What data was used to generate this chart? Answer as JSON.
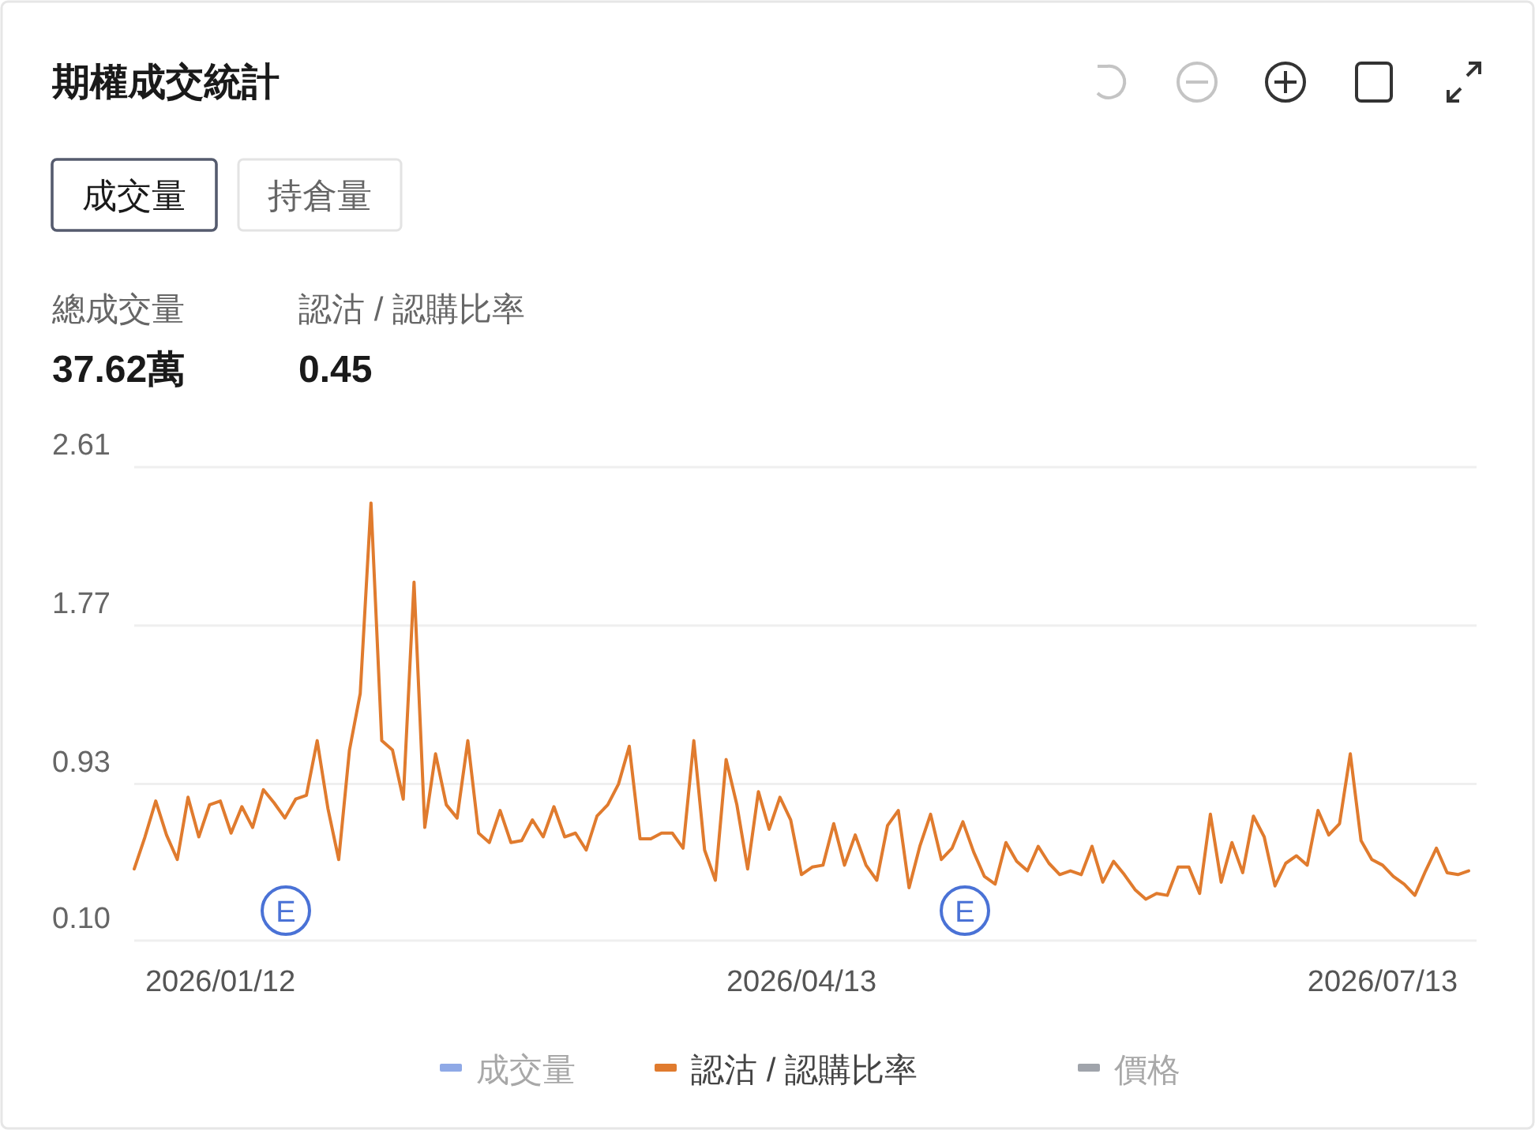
{
  "chart_data": {
    "type": "line",
    "title": "期權成交統計",
    "annotations": [
      "成交量",
      "持倉量",
      "總成交量",
      "37.62萬",
      "認沽 / 認購比率",
      "0.45",
      "E",
      "E"
    ],
    "categories": [
      null,
      null,
      null,
      null,
      null,
      null,
      null,
      null,
      "2026/01/12",
      null,
      null,
      null,
      null,
      null,
      null,
      null,
      null,
      null,
      null,
      null,
      null,
      null,
      null,
      null,
      null,
      null,
      null,
      null,
      null,
      null,
      null,
      null,
      null,
      null,
      null,
      null,
      null,
      null,
      null,
      null,
      null,
      null,
      null,
      null,
      null,
      null,
      null,
      null,
      null,
      null,
      null,
      null,
      null,
      null,
      null,
      null,
      null,
      null,
      null,
      null,
      null,
      null,
      "2026/04/13",
      null,
      null,
      null,
      null,
      null,
      null,
      null,
      null,
      null,
      null,
      null,
      null,
      null,
      null,
      null,
      null,
      null,
      null,
      null,
      null,
      null,
      null,
      null,
      null,
      null,
      null,
      null,
      null,
      null,
      null,
      null,
      null,
      null,
      null,
      null,
      null,
      null,
      null,
      null,
      null,
      null,
      null,
      null,
      null,
      null,
      null,
      null,
      null,
      null,
      null,
      null,
      null,
      null,
      "2026/07/13",
      null,
      null,
      null,
      null,
      null,
      null,
      null,
      null
    ],
    "series": [
      {
        "name": "成交量",
        "color": "#8fa9e6",
        "values": [
          null,
          null,
          null,
          null,
          null,
          null,
          null,
          null,
          null,
          null,
          null,
          null,
          null,
          null,
          null,
          null,
          null,
          null,
          null,
          null,
          null,
          null,
          null,
          null,
          null,
          null,
          null,
          null,
          null,
          null,
          null,
          null,
          null,
          null,
          null,
          null,
          null,
          null,
          null,
          null,
          null,
          null,
          null,
          null,
          null,
          null,
          null,
          null,
          null,
          null,
          null,
          null,
          null,
          null,
          null,
          null,
          null,
          null,
          null,
          null,
          null,
          null,
          null,
          null,
          null,
          null,
          null,
          null,
          null,
          null,
          null,
          null,
          null,
          null,
          null,
          null,
          null,
          null,
          null,
          null,
          null,
          null,
          null,
          null,
          null,
          null,
          null,
          null,
          null,
          null,
          null,
          null,
          null,
          null,
          null,
          null,
          null,
          null,
          null,
          null,
          null,
          null,
          null,
          null,
          null,
          null,
          null,
          null,
          null,
          null,
          null,
          null,
          null,
          null,
          null,
          null,
          null,
          null,
          null,
          null,
          null,
          null,
          null,
          null,
          null
        ]
      },
      {
        "name": "認沽 / 認購比率",
        "color": "#e07b2e",
        "values": [
          0.48,
          0.65,
          0.84,
          0.66,
          0.53,
          0.86,
          0.65,
          0.82,
          0.84,
          0.67,
          0.81,
          0.7,
          0.9,
          0.83,
          0.75,
          0.85,
          0.87,
          1.16,
          0.8,
          0.53,
          1.11,
          1.41,
          2.42,
          1.16,
          1.11,
          0.85,
          2.0,
          0.7,
          1.09,
          0.82,
          0.75,
          1.16,
          0.67,
          0.62,
          0.79,
          0.62,
          0.63,
          0.74,
          0.65,
          0.81,
          0.65,
          0.67,
          0.58,
          0.76,
          0.82,
          0.93,
          1.13,
          0.64,
          0.64,
          0.67,
          0.67,
          0.59,
          1.16,
          0.58,
          0.42,
          1.06,
          0.82,
          0.48,
          0.89,
          0.69,
          0.86,
          0.74,
          0.45,
          0.49,
          0.5,
          0.72,
          0.5,
          0.66,
          0.5,
          0.42,
          0.71,
          0.79,
          0.38,
          0.6,
          0.77,
          0.53,
          0.59,
          0.73,
          0.57,
          0.44,
          0.4,
          0.62,
          0.52,
          0.47,
          0.6,
          0.51,
          0.45,
          0.47,
          0.45,
          0.6,
          0.41,
          0.52,
          0.45,
          0.37,
          0.32,
          0.35,
          0.34,
          0.49,
          0.49,
          0.35,
          0.77,
          0.41,
          0.62,
          0.46,
          0.76,
          0.65,
          0.39,
          0.51,
          0.55,
          0.5,
          0.79,
          0.66,
          0.72,
          1.09,
          0.63,
          0.53,
          0.5,
          0.44,
          0.4,
          0.34,
          0.47,
          0.59,
          0.46,
          0.45,
          0.47
        ]
      },
      {
        "name": "價格",
        "color": "#a0a4ab",
        "values": [
          null,
          null,
          null,
          null,
          null,
          null,
          null,
          null,
          null,
          null,
          null,
          null,
          null,
          null,
          null,
          null,
          null,
          null,
          null,
          null,
          null,
          null,
          null,
          null,
          null,
          null,
          null,
          null,
          null,
          null,
          null,
          null,
          null,
          null,
          null,
          null,
          null,
          null,
          null,
          null,
          null,
          null,
          null,
          null,
          null,
          null,
          null,
          null,
          null,
          null,
          null,
          null,
          null,
          null,
          null,
          null,
          null,
          null,
          null,
          null,
          null,
          null,
          null,
          null,
          null,
          null,
          null,
          null,
          null,
          null,
          null,
          null,
          null,
          null,
          null,
          null,
          null,
          null,
          null,
          null,
          null,
          null,
          null,
          null,
          null,
          null,
          null,
          null,
          null,
          null,
          null,
          null,
          null,
          null,
          null,
          null,
          null,
          null,
          null,
          null,
          null,
          null,
          null,
          null,
          null,
          null,
          null,
          null,
          null,
          null,
          null,
          null,
          null,
          null,
          null,
          null,
          null,
          null,
          null,
          null,
          null,
          null,
          null,
          null,
          null
        ]
      }
    ],
    "ylim": [
      0.1,
      2.61
    ],
    "yticks": [
      {
        "value": 0.1,
        "label": "0.10"
      },
      0.93,
      1.77,
      2.61
    ],
    "grid": "y",
    "legend": "bottom",
    "marker": "none",
    "line_style": "solid"
  }
}
